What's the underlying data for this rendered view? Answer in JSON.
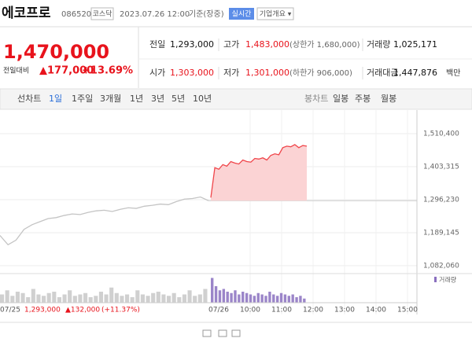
{
  "header": {
    "name": "에코프로",
    "code": "086520",
    "market": "코스닥",
    "time": "2023.07.26 12:00",
    "basis": "기준(장중)",
    "realtime": "실시간",
    "overview": "기업개요 ▾"
  },
  "quote": {
    "price": "1,470,000",
    "change_label": "전일대비",
    "change": "▲177,000",
    "rate": "+13.69%",
    "rows": [
      [
        {
          "label": "전일",
          "value": "1,293,000"
        },
        {
          "label": "고가",
          "value": "1,483,000",
          "extra": "(상한가 1,680,000)"
        },
        {
          "label": "거래량",
          "value": "1,025,171"
        }
      ],
      [
        {
          "label": "시가",
          "value": "1,303,000"
        },
        {
          "label": "저가",
          "value": "1,301,000",
          "extra": "(하한가 906,000)"
        },
        {
          "label": "거래대금",
          "value": "1,447,876",
          "unit": "백만"
        }
      ]
    ]
  },
  "tabs": {
    "line": "선차트",
    "periods": [
      "1일",
      "1주일",
      "3개월",
      "1년",
      "3년",
      "5년",
      "10년"
    ],
    "candle": "봉차트",
    "candle_periods": [
      "일봉",
      "주봉",
      "월봉"
    ]
  },
  "chart": {
    "ylim": [
      1064000,
      1587000
    ],
    "yticks": [
      {
        "value": 1510400,
        "label": "1,510,400"
      },
      {
        "value": 1403315,
        "label": "1,403,315"
      },
      {
        "value": 1296230,
        "label": "1,296,230"
      },
      {
        "value": 1189145,
        "label": "1,189,145"
      },
      {
        "value": 1082060,
        "label": "1,082,060"
      }
    ],
    "previous_close": 1293000,
    "yesterday": {
      "date": "07/25",
      "color": "#c4c4c4",
      "values": [
        1180000,
        1150000,
        1165000,
        1200000,
        1215000,
        1225000,
        1235000,
        1238000,
        1245000,
        1250000,
        1248000,
        1255000,
        1260000,
        1262000,
        1258000,
        1265000,
        1270000,
        1268000,
        1275000,
        1278000,
        1282000,
        1280000,
        1290000,
        1298000,
        1300000,
        1305000,
        1293000
      ]
    },
    "today": {
      "date": "07/26",
      "color": "#f0454a",
      "fill": "#fbd3d4",
      "values": [
        1303000,
        1400000,
        1395000,
        1410000,
        1405000,
        1420000,
        1415000,
        1412000,
        1425000,
        1420000,
        1418000,
        1430000,
        1428000,
        1432000,
        1425000,
        1440000,
        1445000,
        1442000,
        1465000,
        1470000,
        1468000,
        1475000,
        1465000,
        1472000,
        1470000
      ]
    },
    "xticks": [
      "10:00",
      "11:00",
      "12:00",
      "13:00",
      "14:00",
      "15:00"
    ],
    "summary": {
      "close": "1,293,000",
      "change": "▲132,000",
      "rate": "(+11.37%)"
    },
    "volume_label": "거래량",
    "volume_ylim": [
      0,
      100
    ],
    "volume_yesterday": [
      30,
      45,
      25,
      40,
      35,
      20,
      50,
      30,
      25,
      35,
      40,
      20,
      30,
      45,
      25,
      30,
      35,
      20,
      25,
      40,
      30,
      55,
      35,
      25,
      30,
      20,
      45,
      30,
      25,
      35,
      40,
      30,
      25,
      35,
      20,
      30,
      45,
      25,
      30,
      50
    ],
    "volume_today": [
      90,
      60,
      45,
      50,
      40,
      35,
      45,
      30,
      40,
      35,
      30,
      25,
      35,
      30,
      25,
      40,
      30,
      25,
      35,
      30,
      25,
      30,
      20,
      25,
      15
    ]
  }
}
